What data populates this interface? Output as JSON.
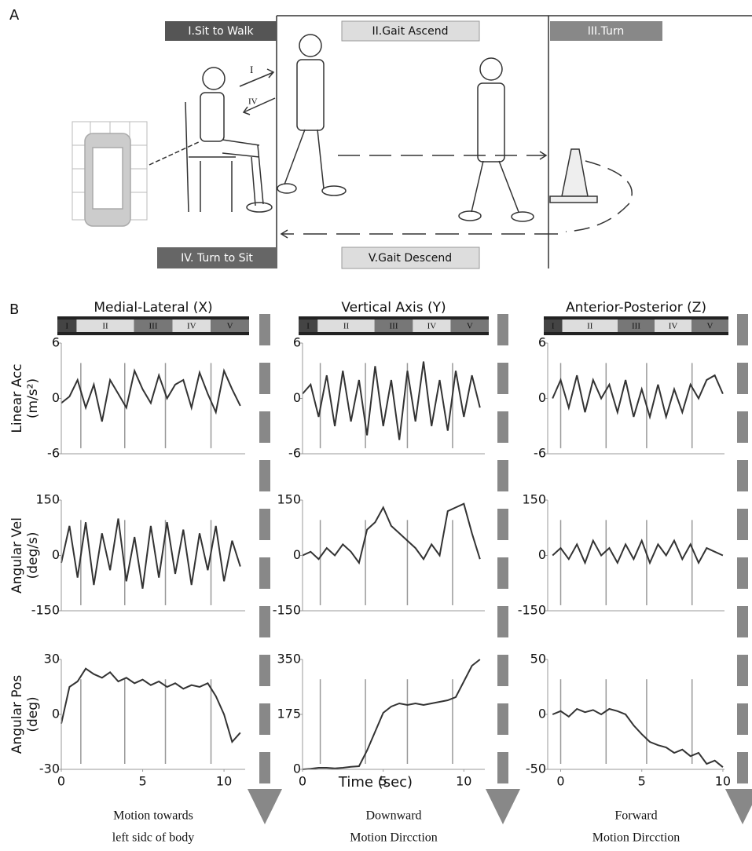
{
  "panel_a": {
    "label": "A",
    "phases": [
      "I.Sit to Walk",
      "II.Gait Ascend",
      "III.Turn",
      "IV. Turn to Sit",
      "V.Gait Descend"
    ],
    "arrow_labels": [
      "I",
      "IV"
    ]
  },
  "panel_b": {
    "label": "B",
    "column_titles": [
      "Medial-Lateral (X)",
      "Vertical Axis (Y)",
      "Anterior-Posterior (Z)"
    ],
    "row_labels": [
      [
        "Linear Acc",
        "(m/s²)"
      ],
      [
        "Angular Vel",
        "(deg/s)"
      ],
      [
        "Angular Pos",
        "(deg)"
      ]
    ],
    "phases": [
      "I",
      "II",
      "III",
      "IV",
      "V"
    ],
    "x_label": "Time (sec)",
    "captions": [
      [
        "Motion towards",
        "left sidc of body"
      ],
      [
        "Downward",
        "Motion Dircction"
      ],
      [
        "Forward",
        "Motion Dircction"
      ]
    ]
  },
  "chart_data": [
    {
      "type": "line",
      "color": "#333333",
      "x": [
        0,
        0.5,
        1,
        1.5,
        2,
        2.5,
        3,
        3.5,
        4,
        4.5,
        5,
        5.5,
        6,
        6.5,
        7,
        7.5,
        8,
        8.5,
        9,
        9.5,
        10,
        10.5,
        11
      ],
      "values": [
        -0.5,
        0.2,
        2,
        -1,
        1.5,
        -2.5,
        2,
        0.5,
        -1,
        3,
        1,
        -0.5,
        2.5,
        0,
        1.5,
        2,
        -1,
        2.8,
        0.5,
        -1.5,
        3,
        1,
        -0.8
      ],
      "xlim": [
        0,
        11.3
      ],
      "ylim": [
        -6,
        6
      ],
      "yticks": [
        6,
        0,
        -6
      ],
      "phase_lines": [
        1.2,
        3.9,
        6.4,
        9.2
      ]
    },
    {
      "type": "line",
      "color": "#333333",
      "x": [
        0,
        0.5,
        1,
        1.5,
        2,
        2.5,
        3,
        3.5,
        4,
        4.5,
        5,
        5.5,
        6,
        6.5,
        7,
        7.5,
        8,
        8.5,
        9,
        9.5,
        10,
        10.5,
        11
      ],
      "values": [
        0.5,
        1.5,
        -2,
        2.5,
        -3,
        3,
        -2.5,
        2,
        -4,
        3.5,
        -3,
        2,
        -4.5,
        3,
        -2.5,
        4,
        -3,
        2,
        -3.5,
        3,
        -2,
        2.5,
        -1
      ],
      "xlim": [
        0,
        11.3
      ],
      "ylim": [
        -6,
        6
      ],
      "yticks": [
        6,
        0,
        -6
      ],
      "phase_lines": [
        1.1,
        3.9,
        6.5,
        9.3
      ]
    },
    {
      "type": "line",
      "color": "#333333",
      "x": [
        -0.5,
        0,
        0.5,
        1,
        1.5,
        2,
        2.5,
        3,
        3.5,
        4,
        4.5,
        5,
        5.5,
        6,
        6.5,
        7,
        7.5,
        8,
        8.5,
        9,
        9.5,
        10
      ],
      "values": [
        0,
        2,
        -1,
        2.5,
        -1.5,
        2,
        0,
        1.5,
        -1.5,
        2,
        -2,
        1,
        -2,
        1.5,
        -2,
        1,
        -1.5,
        1.5,
        0,
        2,
        2.5,
        0.5
      ],
      "xlim": [
        -0.8,
        10.1
      ],
      "ylim": [
        -6,
        6
      ],
      "yticks": [
        6,
        0,
        -6
      ],
      "phase_lines": [
        0,
        2.8,
        5.3,
        8.1
      ]
    },
    {
      "type": "line",
      "color": "#333333",
      "x": [
        0,
        0.5,
        1,
        1.5,
        2,
        2.5,
        3,
        3.5,
        4,
        4.5,
        5,
        5.5,
        6,
        6.5,
        7,
        7.5,
        8,
        8.5,
        9,
        9.5,
        10,
        10.5,
        11
      ],
      "values": [
        -20,
        80,
        -60,
        90,
        -80,
        60,
        -40,
        100,
        -70,
        50,
        -90,
        80,
        -60,
        90,
        -50,
        70,
        -80,
        60,
        -40,
        80,
        -70,
        40,
        -30
      ],
      "xlim": [
        0,
        11.3
      ],
      "ylim": [
        -150,
        150
      ],
      "yticks": [
        150,
        0,
        -150
      ],
      "phase_lines": [
        1.2,
        3.9,
        6.4,
        9.2
      ]
    },
    {
      "type": "line",
      "color": "#333333",
      "x": [
        0,
        0.5,
        1,
        1.5,
        2,
        2.5,
        3,
        3.5,
        4,
        4.5,
        5,
        5.5,
        6,
        6.5,
        7,
        7.5,
        8,
        8.5,
        9,
        9.5,
        10,
        10.5,
        11
      ],
      "values": [
        0,
        10,
        -10,
        20,
        0,
        30,
        10,
        -20,
        70,
        90,
        130,
        80,
        60,
        40,
        20,
        -10,
        30,
        0,
        120,
        130,
        140,
        60,
        -10
      ],
      "xlim": [
        0,
        11.3
      ],
      "ylim": [
        -150,
        150
      ],
      "yticks": [
        150,
        0,
        -150
      ],
      "phase_lines": [
        1.1,
        3.9,
        6.5,
        9.3
      ]
    },
    {
      "type": "line",
      "color": "#333333",
      "x": [
        -0.5,
        0,
        0.5,
        1,
        1.5,
        2,
        2.5,
        3,
        3.5,
        4,
        4.5,
        5,
        5.5,
        6,
        6.5,
        7,
        7.5,
        8,
        8.5,
        9,
        9.5,
        10
      ],
      "values": [
        0,
        20,
        -10,
        30,
        -20,
        40,
        0,
        20,
        -20,
        30,
        -10,
        40,
        -20,
        30,
        0,
        40,
        -10,
        30,
        -20,
        20,
        10,
        0
      ],
      "xlim": [
        -0.8,
        10.1
      ],
      "ylim": [
        -150,
        150
      ],
      "yticks": [
        150,
        0,
        -150
      ],
      "phase_lines": [
        0,
        2.8,
        5.3,
        8.1
      ]
    },
    {
      "type": "line",
      "color": "#333333",
      "x": [
        0,
        0.5,
        1,
        1.5,
        2,
        2.5,
        3,
        3.5,
        4,
        4.5,
        5,
        5.5,
        6,
        6.5,
        7,
        7.5,
        8,
        8.5,
        9,
        9.5,
        10,
        10.5,
        11
      ],
      "values": [
        -5,
        15,
        18,
        25,
        22,
        20,
        23,
        18,
        20,
        17,
        19,
        16,
        18,
        15,
        17,
        14,
        16,
        15,
        17,
        10,
        0,
        -15,
        -10
      ],
      "xlim": [
        0,
        11.3
      ],
      "ylim": [
        -30,
        30
      ],
      "yticks": [
        30,
        0,
        -30
      ],
      "xticks": [
        0,
        5,
        10
      ],
      "phase_lines": [
        1.2,
        3.9,
        6.4,
        9.2
      ]
    },
    {
      "type": "line",
      "color": "#333333",
      "x": [
        0,
        0.5,
        1,
        1.5,
        2,
        2.5,
        3,
        3.5,
        4,
        4.5,
        5,
        5.5,
        6,
        6.5,
        7,
        7.5,
        8,
        8.5,
        9,
        9.5,
        10,
        10.5,
        11
      ],
      "values": [
        0,
        2,
        5,
        5,
        3,
        5,
        8,
        10,
        60,
        120,
        180,
        200,
        210,
        205,
        210,
        205,
        210,
        215,
        220,
        230,
        280,
        330,
        350
      ],
      "xlim": [
        0,
        11.3
      ],
      "ylim": [
        0,
        350
      ],
      "yticks": [
        350,
        175,
        0
      ],
      "xticks": [
        0,
        5,
        10
      ],
      "phase_lines": [
        1.1,
        3.9,
        6.5,
        9.3
      ]
    },
    {
      "type": "line",
      "color": "#333333",
      "x": [
        -0.5,
        0,
        0.5,
        1,
        1.5,
        2,
        2.5,
        3,
        3.5,
        4,
        4.5,
        5,
        5.5,
        6,
        6.5,
        7,
        7.5,
        8,
        8.5,
        9,
        9.5,
        10
      ],
      "values": [
        0,
        3,
        -2,
        5,
        2,
        4,
        0,
        5,
        3,
        0,
        -10,
        -18,
        -25,
        -28,
        -30,
        -35,
        -32,
        -38,
        -35,
        -45,
        -42,
        -48
      ],
      "xlim": [
        -0.8,
        10.1
      ],
      "ylim": [
        -50,
        50
      ],
      "yticks": [
        50,
        0,
        -50
      ],
      "xticks": [
        0,
        5,
        10
      ],
      "phase_lines": [
        0,
        2.8,
        5.3,
        8.1
      ]
    }
  ]
}
